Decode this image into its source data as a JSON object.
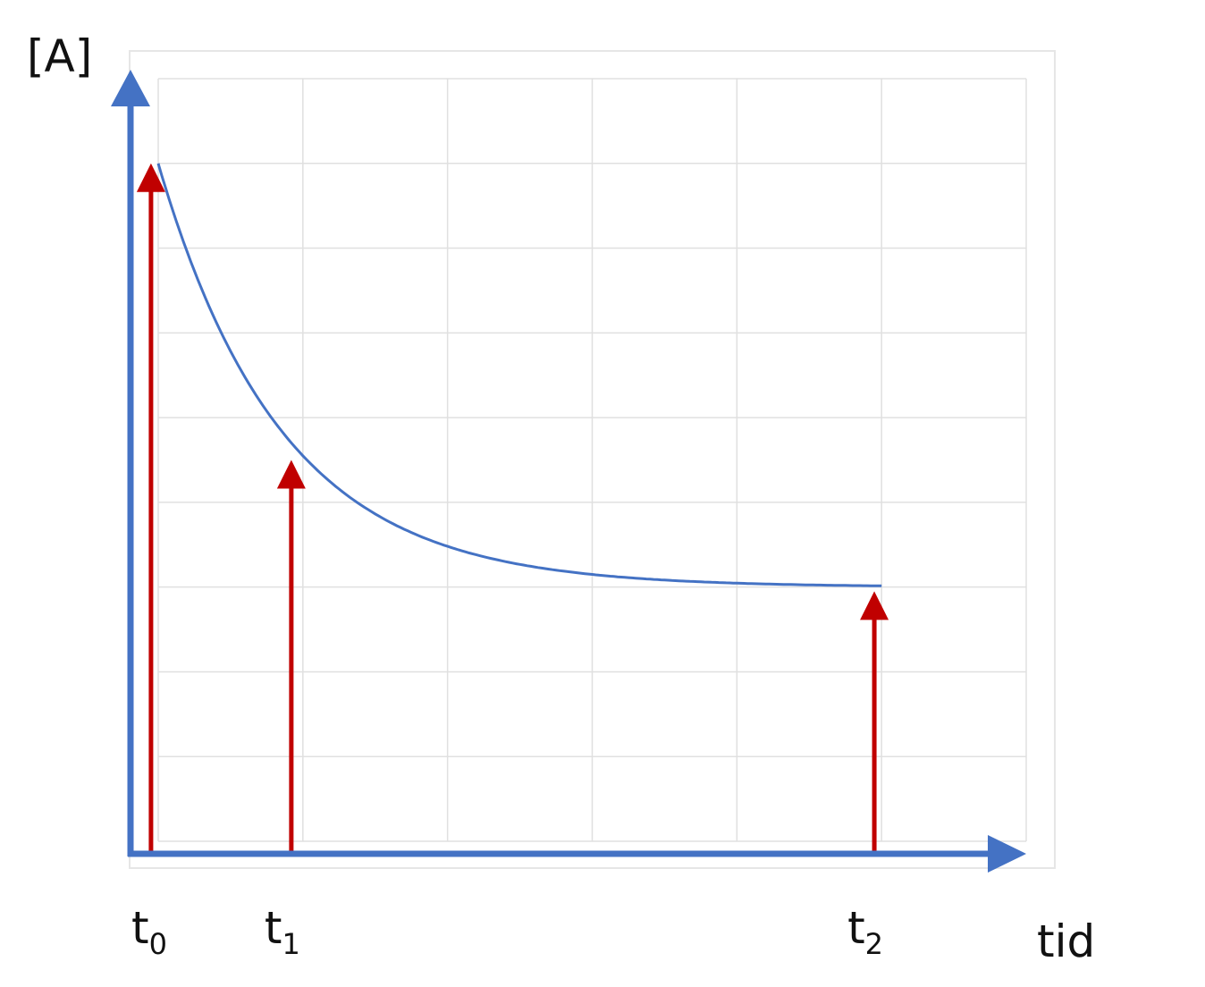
{
  "chart_data": {
    "type": "line",
    "ylabel": "[A]",
    "xlabel": "tid",
    "x_tick_labels": [
      {
        "base": "t",
        "sub": "0",
        "x": 0
      },
      {
        "base": "t",
        "sub": "1",
        "x": 0.92
      },
      {
        "base": "t",
        "sub": "2",
        "x": 4.95
      }
    ],
    "xlim": [
      0,
      6
    ],
    "ylim": [
      0,
      9
    ],
    "grid": true,
    "curve": {
      "color": "#4472C4",
      "description_points": [
        {
          "x": 0,
          "y": 8.0
        },
        {
          "x": 0.5,
          "y": 6.11
        },
        {
          "x": 1,
          "y": 4.55
        },
        {
          "x": 2,
          "y": 3.48
        },
        {
          "x": 3,
          "y": 3.15
        },
        {
          "x": 4,
          "y": 3.05
        },
        {
          "x": 5,
          "y": 3.0
        }
      ]
    },
    "markers": [
      {
        "x": -0.05,
        "y": 8.0
      },
      {
        "x": 0.92,
        "y": 4.5
      },
      {
        "x": 4.95,
        "y": 2.95
      }
    ],
    "colors": {
      "axis": "#4472C4",
      "marker": "#C00000",
      "grid": "#E0E0E0"
    }
  }
}
